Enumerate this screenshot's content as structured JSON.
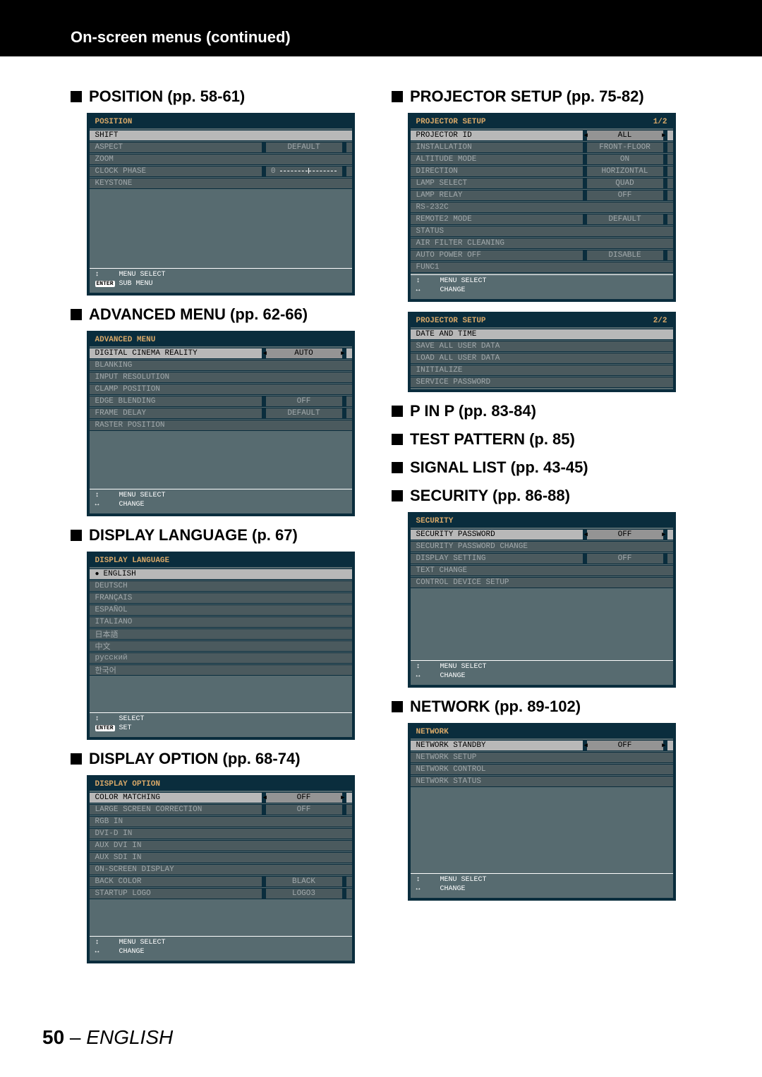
{
  "header": "On-screen menus (continued)",
  "page_footer": {
    "number": "50",
    "sep": " – ",
    "lang": "ENGLISH"
  },
  "sections": {
    "position": {
      "heading": "POSITION (pp. 58-61)"
    },
    "advanced": {
      "heading": "ADVANCED MENU (pp. 62-66)"
    },
    "language": {
      "heading": "DISPLAY LANGUAGE (p. 67)"
    },
    "display_opt": {
      "heading": "DISPLAY OPTION (pp. 68-74)"
    },
    "proj_setup": {
      "heading": "PROJECTOR SETUP (pp. 75-82)"
    },
    "pinp": {
      "heading": "P IN P (pp. 83-84)"
    },
    "testpattern": {
      "heading": "TEST PATTERN (p. 85)"
    },
    "signallist": {
      "heading": "SIGNAL LIST (pp. 43-45)"
    },
    "security": {
      "heading": "SECURITY (pp. 86-88)"
    },
    "network": {
      "heading": "NETWORK (pp. 89-102)"
    }
  },
  "colors": {
    "menu_border": "#0a2d3d",
    "menu_bg": "#576b70",
    "row_bg": "#4b5a5e",
    "highlight_bg": "#b8b8b8",
    "title_color": "#d8a868",
    "dim_text": "#a0a8ab"
  },
  "menus": {
    "position": {
      "title": "POSITION",
      "rows": [
        {
          "label": "SHIFT",
          "hl": true
        },
        {
          "label": "ASPECT",
          "dim": true,
          "value": "DEFAULT"
        },
        {
          "label": "ZOOM",
          "dim": true
        },
        {
          "label": "CLOCK PHASE",
          "dim": true,
          "value": "0",
          "slider": true
        },
        {
          "label": "KEYSTONE",
          "dim": true
        }
      ],
      "foot": [
        {
          "icon": "↕",
          "text": "MENU SELECT"
        },
        {
          "icon": "ENTER",
          "text": "SUB MENU"
        }
      ],
      "empty": 110
    },
    "advanced": {
      "title": "ADVANCED MENU",
      "rows": [
        {
          "label": "DIGITAL CINEMA REALITY",
          "hl": true,
          "value": "AUTO",
          "arrows": true
        },
        {
          "label": "BLANKING",
          "dim": true
        },
        {
          "label": "INPUT RESOLUTION",
          "dim": true
        },
        {
          "label": "CLAMP POSITION",
          "dim": true
        },
        {
          "label": "EDGE BLENDING",
          "dim": true,
          "value": "OFF"
        },
        {
          "label": "FRAME DELAY",
          "dim": true,
          "value": "DEFAULT"
        },
        {
          "label": "RASTER POSITION",
          "dim": true
        }
      ],
      "foot": [
        {
          "icon": "↕",
          "text": "MENU SELECT"
        },
        {
          "icon": "↔",
          "text": "CHANGE"
        }
      ],
      "empty": 80
    },
    "language": {
      "title": "DISPLAY LANGUAGE",
      "rows": [
        {
          "label": "ENGLISH",
          "hl": true,
          "bullet": true
        },
        {
          "label": "DEUTSCH",
          "dim": true
        },
        {
          "label": "FRANÇAIS",
          "dim": true
        },
        {
          "label": "ESPAÑOL",
          "dim": true
        },
        {
          "label": "ITALIANO",
          "dim": true
        },
        {
          "label": "日本語",
          "dim": true
        },
        {
          "label": "中文",
          "dim": true
        },
        {
          "label": "русский",
          "dim": true
        },
        {
          "label": "한국어",
          "dim": true
        }
      ],
      "foot": [
        {
          "icon": "↕",
          "text": "SELECT"
        },
        {
          "icon": "ENTER",
          "text": "SET"
        }
      ],
      "empty": 50
    },
    "display_opt": {
      "title": "DISPLAY OPTION",
      "rows": [
        {
          "label": "COLOR MATCHING",
          "hl": true,
          "value": "OFF",
          "arrows": true
        },
        {
          "label": "LARGE SCREEN CORRECTION",
          "dim": true,
          "value": "OFF"
        },
        {
          "label": "RGB IN",
          "dim": true
        },
        {
          "label": "DVI-D IN",
          "dim": true
        },
        {
          "label": "AUX DVI IN",
          "dim": true
        },
        {
          "label": "AUX SDI IN",
          "dim": true
        },
        {
          "label": "ON-SCREEN DISPLAY",
          "dim": true
        },
        {
          "label": "BACK COLOR",
          "dim": true,
          "value": "BLACK"
        },
        {
          "label": "STARTUP LOGO",
          "dim": true,
          "value": "LOGO3"
        }
      ],
      "foot": [
        {
          "icon": "↕",
          "text": "MENU SELECT"
        },
        {
          "icon": "↔",
          "text": "CHANGE"
        }
      ],
      "empty": 50
    },
    "proj_setup_1": {
      "title": "PROJECTOR SETUP",
      "page": "1/2",
      "rows": [
        {
          "label": "PROJECTOR ID",
          "hl": true,
          "value": "ALL",
          "arrows": true
        },
        {
          "label": "INSTALLATION",
          "dim": true,
          "value": "FRONT-FLOOR"
        },
        {
          "label": "ALTITUDE MODE",
          "dim": true,
          "value": "ON"
        },
        {
          "label": "DIRECTION",
          "dim": true,
          "value": "HORIZONTAL"
        },
        {
          "label": "LAMP SELECT",
          "dim": true,
          "value": "QUAD"
        },
        {
          "label": "LAMP RELAY",
          "dim": true,
          "value": "OFF"
        },
        {
          "label": "RS-232C",
          "dim": true
        },
        {
          "label": "REMOTE2 MODE",
          "dim": true,
          "value": "DEFAULT"
        },
        {
          "label": "STATUS",
          "dim": true
        },
        {
          "label": "AIR FILTER CLEANING",
          "dim": true
        },
        {
          "label": "AUTO POWER OFF",
          "dim": true,
          "value": "DISABLE"
        },
        {
          "label": "FUNC1",
          "dim": true
        }
      ],
      "foot": [
        {
          "icon": "↕",
          "text": "MENU SELECT"
        },
        {
          "icon": "↔",
          "text": "CHANGE"
        }
      ],
      "empty": 0
    },
    "proj_setup_2": {
      "title": "PROJECTOR SETUP",
      "page": "2/2",
      "rows": [
        {
          "label": "DATE AND TIME",
          "hl": true
        },
        {
          "label": "SAVE ALL USER DATA",
          "dim": true
        },
        {
          "label": "LOAD ALL USER DATA",
          "dim": true
        },
        {
          "label": "INITIALIZE",
          "dim": true
        },
        {
          "label": "SERVICE PASSWORD",
          "dim": true
        }
      ],
      "foot": [],
      "empty": 0,
      "compact": true
    },
    "security": {
      "title": "SECURITY",
      "rows": [
        {
          "label": "SECURITY PASSWORD",
          "hl": true,
          "value": "OFF",
          "arrows": true
        },
        {
          "label": "SECURITY PASSWORD CHANGE",
          "dim": true
        },
        {
          "label": "DISPLAY SETTING",
          "dim": true,
          "value": "OFF"
        },
        {
          "label": "TEXT CHANGE",
          "dim": true
        },
        {
          "label": "CONTROL DEVICE SETUP",
          "dim": true
        }
      ],
      "foot": [
        {
          "icon": "↕",
          "text": "MENU SELECT"
        },
        {
          "icon": "↔",
          "text": "CHANGE"
        }
      ],
      "empty": 100
    },
    "network": {
      "title": "NETWORK",
      "rows": [
        {
          "label": "NETWORK STANDBY",
          "hl": true,
          "value": "OFF",
          "arrows": true
        },
        {
          "label": "NETWORK SETUP",
          "dim": true
        },
        {
          "label": "NETWORK CONTROL",
          "dim": true
        },
        {
          "label": "NETWORK STATUS",
          "dim": true
        }
      ],
      "foot": [
        {
          "icon": "↕",
          "text": "MENU SELECT"
        },
        {
          "icon": "↔",
          "text": "CHANGE"
        }
      ],
      "empty": 120
    }
  }
}
